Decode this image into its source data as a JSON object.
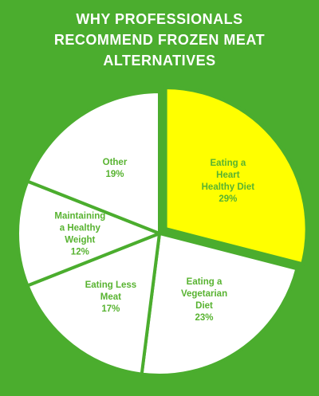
{
  "chart_data": {
    "type": "pie",
    "title": [
      "WHY PROFESSIONALS",
      "RECOMMEND FROZEN MEAT",
      "ALTERNATIVES"
    ],
    "slices": [
      {
        "label": "Eating a Heart Healthy Diet",
        "lines": [
          "Eating a",
          "Heart",
          "Healthy Diet",
          "29%"
        ],
        "value": 29,
        "color": "#ffff00"
      },
      {
        "label": "Eating a Vegetarian Diet",
        "lines": [
          "Eating a",
          "Vegetarian",
          "Diet",
          "23%"
        ],
        "value": 23,
        "color": "#ffffff"
      },
      {
        "label": "Eating Less Meat",
        "lines": [
          "Eating Less",
          "Meat",
          "17%"
        ],
        "value": 17,
        "color": "#ffffff"
      },
      {
        "label": "Maintaining a Healthy Weight",
        "lines": [
          "Maintaining",
          "a Healthy",
          "Weight",
          "12%"
        ],
        "value": 12,
        "color": "#ffffff"
      },
      {
        "label": "Other",
        "lines": [
          "Other",
          "19%"
        ],
        "value": 19,
        "color": "#ffffff"
      }
    ],
    "label_color": "#58b331",
    "border_color": "#4bad2e",
    "highlight_border_color": "#4bad2e"
  }
}
